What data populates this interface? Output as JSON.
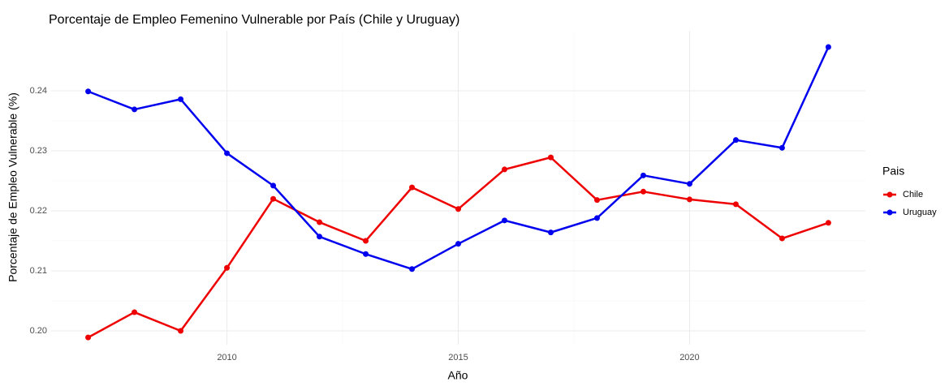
{
  "chart_data": {
    "type": "line",
    "title": "Porcentaje de Empleo Femenino Vulnerable por País (Chile y Uruguay)",
    "x_label": "Año",
    "y_label": "Porcentaje de Empleo Vulnerable (%)",
    "legend_title": "Pais",
    "legend_position": "right",
    "grid": true,
    "x": [
      2007,
      2008,
      2009,
      2010,
      2011,
      2012,
      2013,
      2014,
      2015,
      2016,
      2017,
      2018,
      2019,
      2020,
      2021,
      2022,
      2023
    ],
    "series": [
      {
        "name": "Chile",
        "color": "#ee0000",
        "values": [
          0.1989,
          0.2031,
          0.2,
          0.2105,
          0.222,
          0.2181,
          0.215,
          0.2239,
          0.2203,
          0.2269,
          0.2289,
          0.2218,
          0.2232,
          0.2219,
          0.2211,
          0.2154,
          0.218
        ]
      },
      {
        "name": "Uruguay",
        "color": "#0000ee",
        "values": [
          0.2399,
          0.2369,
          0.2386,
          0.2296,
          0.2242,
          0.2157,
          0.2128,
          0.2103,
          0.2145,
          0.2184,
          0.2164,
          0.2188,
          0.2259,
          0.2245,
          0.2318,
          0.2305,
          0.2473
        ]
      }
    ],
    "xlim": [
      2006.2,
      2023.8
    ],
    "xticks": [
      2010,
      2015,
      2020
    ],
    "ylim": [
      0.1977,
      0.25
    ],
    "yticks": [
      {
        "value": 0.2,
        "label": "0.20"
      },
      {
        "value": 0.21,
        "label": "0.21"
      },
      {
        "value": 0.22,
        "label": "0.22"
      },
      {
        "value": 0.23,
        "label": "0.23"
      },
      {
        "value": 0.24,
        "label": "0.24"
      }
    ]
  }
}
